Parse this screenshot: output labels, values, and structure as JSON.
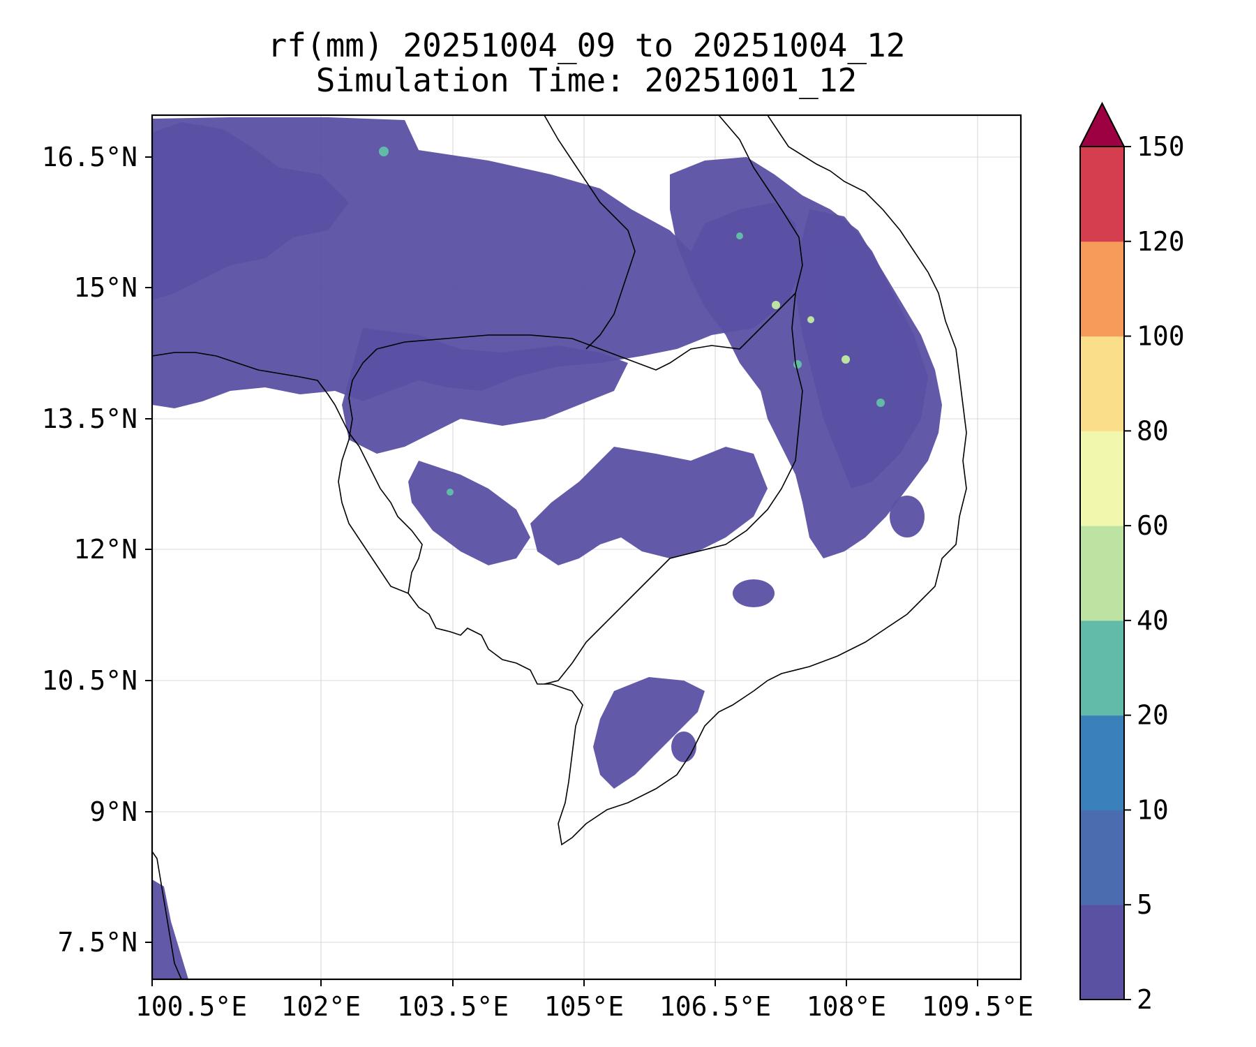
{
  "title": {
    "line1": "rf(mm) 20251004_09 to 20251004_12",
    "line2": "Simulation Time: 20251001_12"
  },
  "map": {
    "lon_range": [
      100.5,
      109.5
    ],
    "lat_range": [
      7.0,
      16.9
    ],
    "lon_ticks": [
      "100.5°E",
      "102°E",
      "103.5°E",
      "105°E",
      "106.5°E",
      "108°E",
      "109.5°E"
    ],
    "lat_ticks": [
      "16.5°N",
      "15°N",
      "13.5°N",
      "12°N",
      "10.5°N",
      "9°N",
      "7.5°N"
    ],
    "field": "rainfall (mm)"
  },
  "colorbar": {
    "levels": [
      "2",
      "5",
      "10",
      "20",
      "40",
      "60",
      "80",
      "100",
      "120",
      "150"
    ],
    "colors": [
      "#5a51a3",
      "#4c6cb0",
      "#3a80ba",
      "#62bba9",
      "#bde3a2",
      "#f1f8ad",
      "#fbde89",
      "#f79b5b",
      "#d53e4f"
    ],
    "extend_color": "#9e0142"
  }
}
